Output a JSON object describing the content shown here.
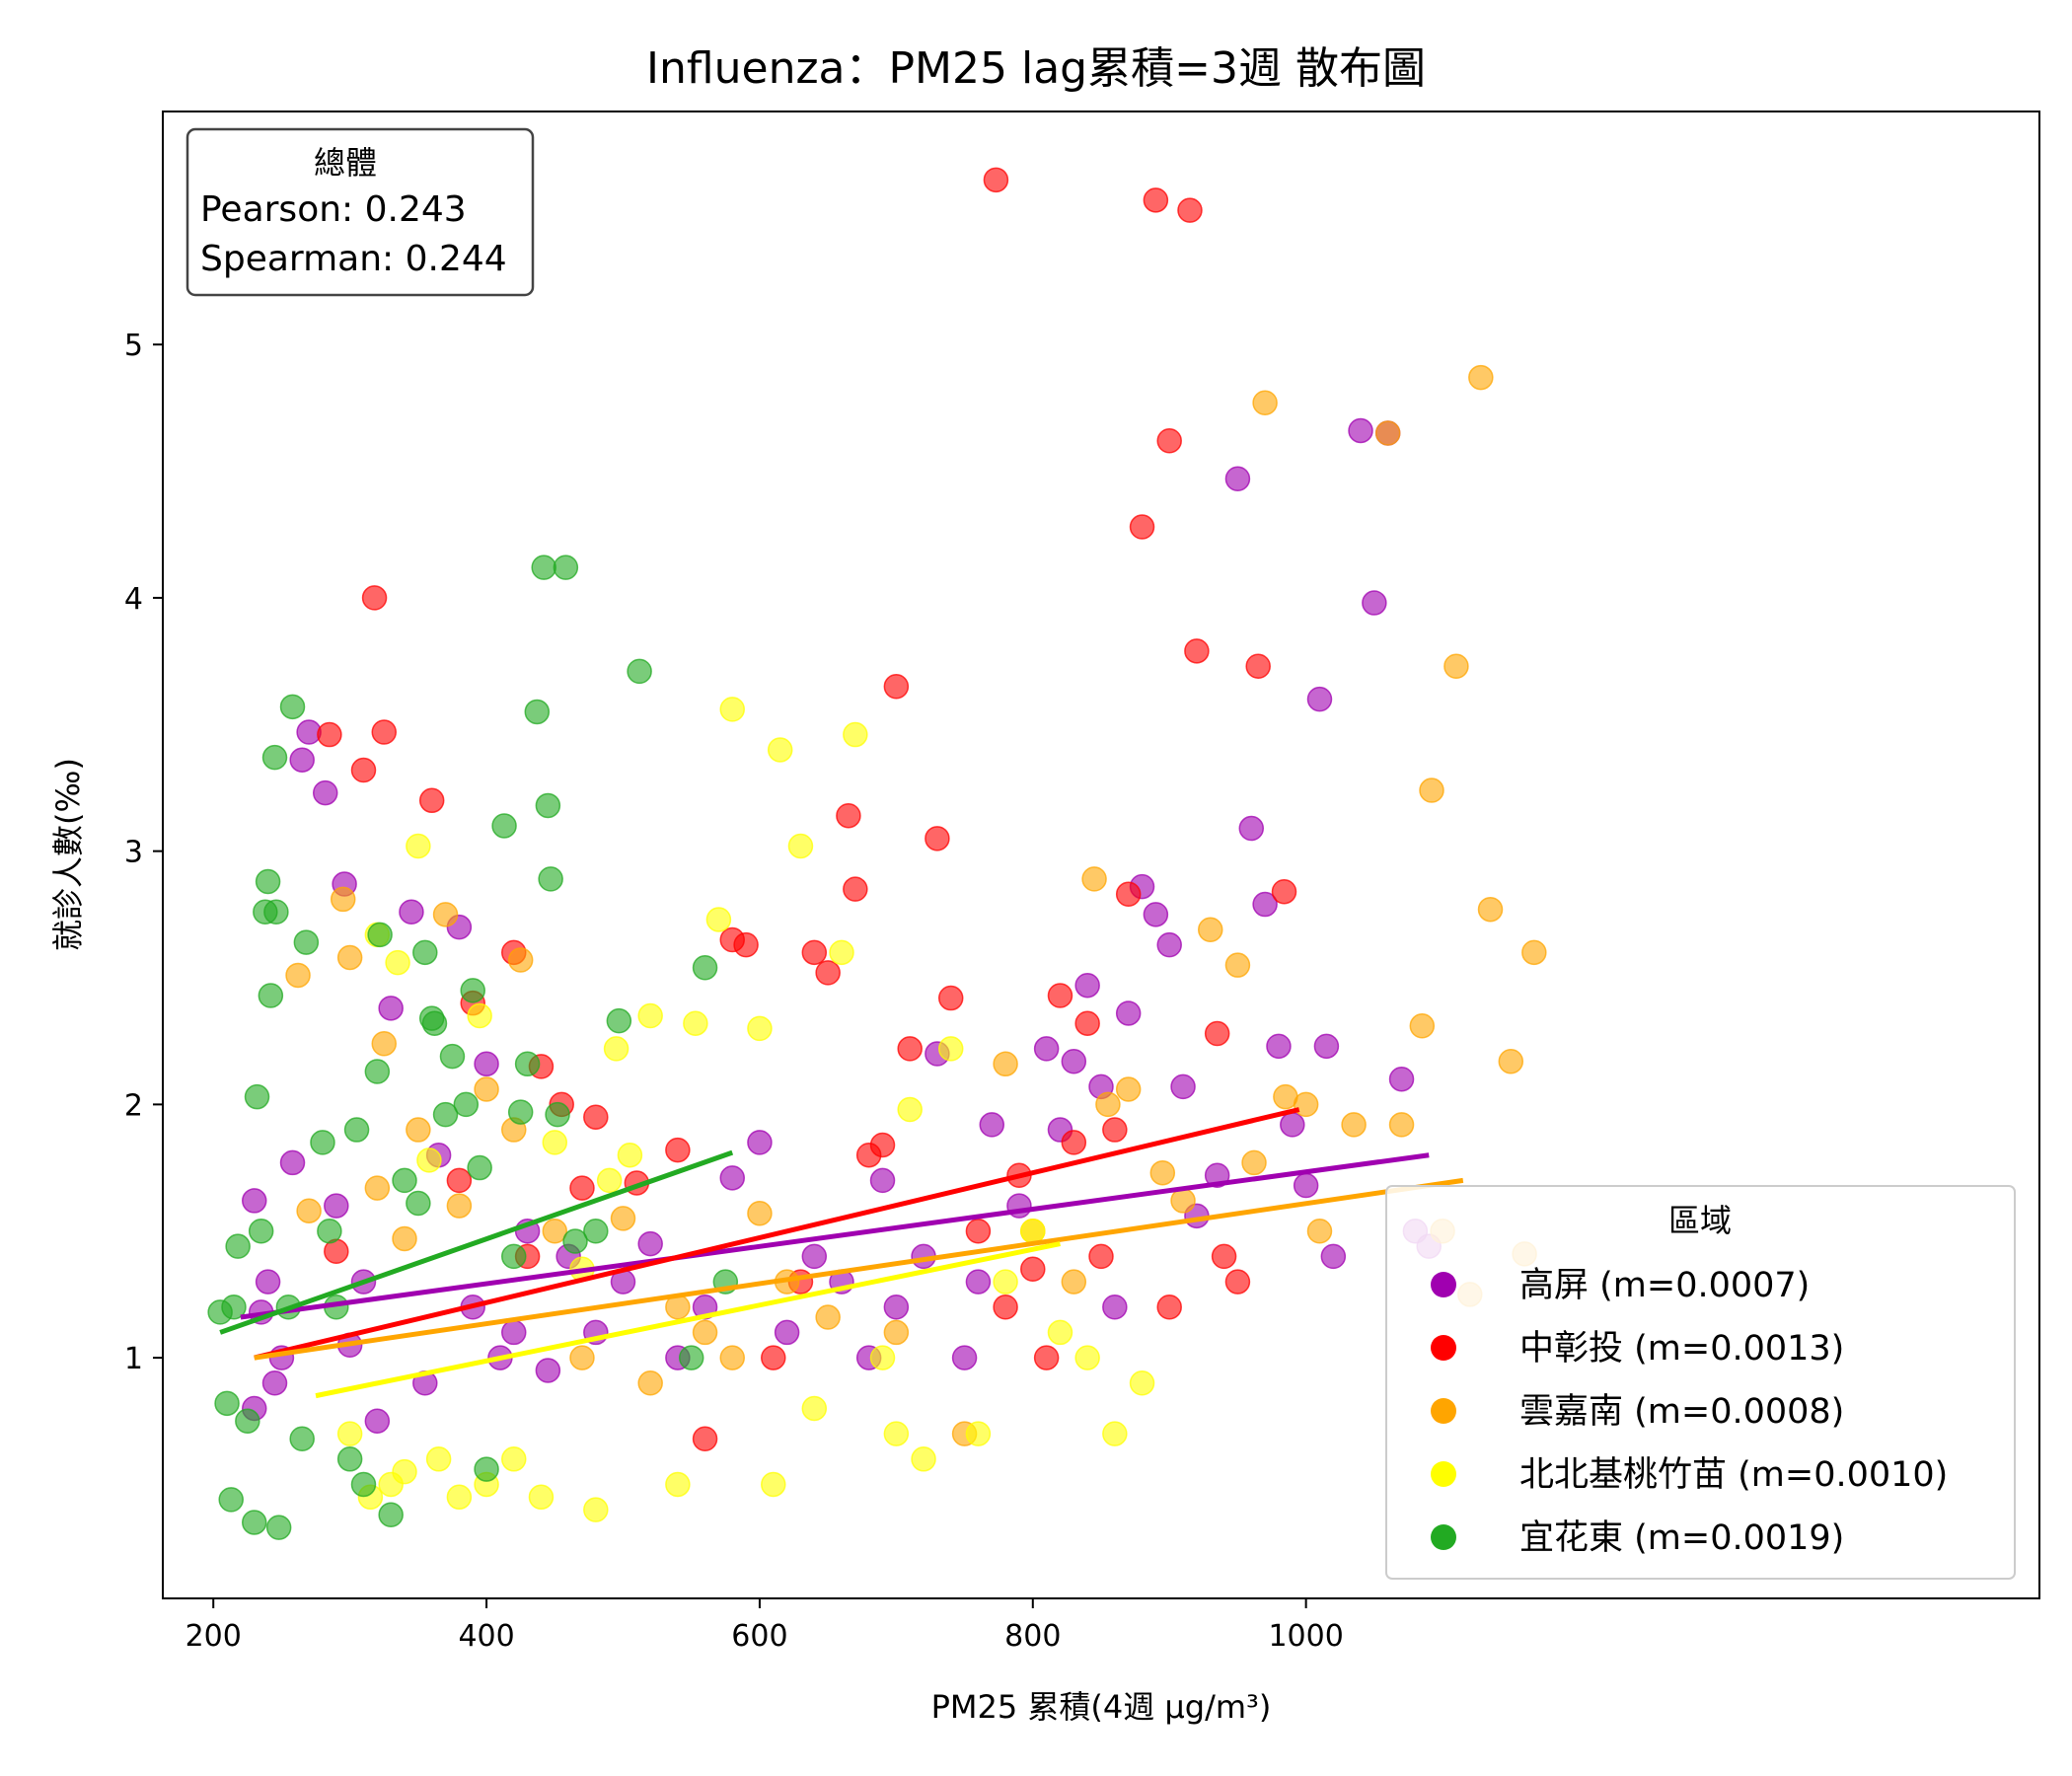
{
  "chart_data": {
    "type": "scatter",
    "title": "Influenza：PM25 lag累積=3週 散布圖",
    "xlabel": "PM25 累積(4週 μg/m³)",
    "ylabel": "就診人數(‰)",
    "xlim": [
      163,
      1537
    ],
    "ylim": [
      0.05,
      5.92
    ],
    "xticks": [
      200,
      400,
      600,
      800,
      1000
    ],
    "yticks": [
      1,
      2,
      3,
      4,
      5
    ],
    "grid": false,
    "stats_box": {
      "title": "總體",
      "pearson": "Pearson: 0.243",
      "spearman": "Spearman: 0.244"
    },
    "legend": {
      "title": "區域",
      "placement": "lower-right"
    },
    "series": [
      {
        "name": "高屏 (m=0.0007)",
        "color": "#a000b0",
        "trend": {
          "x": [
            220,
            1090
          ],
          "y": [
            1.16,
            1.8
          ]
        },
        "points": [
          [
            230,
            1.62
          ],
          [
            235,
            1.18
          ],
          [
            240,
            1.3
          ],
          [
            245,
            0.9
          ],
          [
            250,
            1.0
          ],
          [
            258,
            1.77
          ],
          [
            265,
            3.36
          ],
          [
            270,
            3.47
          ],
          [
            282,
            3.23
          ],
          [
            290,
            1.6
          ],
          [
            296,
            2.87
          ],
          [
            230,
            0.8
          ],
          [
            300,
            1.05
          ],
          [
            310,
            1.3
          ],
          [
            320,
            0.75
          ],
          [
            330,
            2.38
          ],
          [
            345,
            2.76
          ],
          [
            355,
            0.9
          ],
          [
            365,
            1.8
          ],
          [
            380,
            2.7
          ],
          [
            390,
            1.2
          ],
          [
            400,
            2.16
          ],
          [
            410,
            1.0
          ],
          [
            420,
            1.1
          ],
          [
            430,
            1.5
          ],
          [
            445,
            0.95
          ],
          [
            460,
            1.4
          ],
          [
            480,
            1.1
          ],
          [
            500,
            1.3
          ],
          [
            520,
            1.45
          ],
          [
            540,
            1.0
          ],
          [
            560,
            1.2
          ],
          [
            580,
            1.71
          ],
          [
            600,
            1.85
          ],
          [
            620,
            1.1
          ],
          [
            640,
            1.4
          ],
          [
            660,
            1.3
          ],
          [
            680,
            1.0
          ],
          [
            690,
            1.7
          ],
          [
            700,
            1.2
          ],
          [
            720,
            1.4
          ],
          [
            730,
            2.2
          ],
          [
            750,
            1.0
          ],
          [
            760,
            1.3
          ],
          [
            770,
            1.92
          ],
          [
            790,
            1.6
          ],
          [
            810,
            2.22
          ],
          [
            820,
            1.9
          ],
          [
            830,
            2.17
          ],
          [
            840,
            2.47
          ],
          [
            850,
            2.07
          ],
          [
            860,
            1.2
          ],
          [
            870,
            2.36
          ],
          [
            880,
            2.86
          ],
          [
            890,
            2.75
          ],
          [
            900,
            2.63
          ],
          [
            910,
            2.07
          ],
          [
            920,
            1.56
          ],
          [
            935,
            1.72
          ],
          [
            950,
            4.47
          ],
          [
            960,
            3.09
          ],
          [
            970,
            2.79
          ],
          [
            980,
            2.23
          ],
          [
            990,
            1.92
          ],
          [
            1000,
            1.68
          ],
          [
            1010,
            3.6
          ],
          [
            1015,
            2.23
          ],
          [
            1020,
            1.4
          ],
          [
            1040,
            4.66
          ],
          [
            1050,
            3.98
          ],
          [
            1060,
            4.65
          ],
          [
            1070,
            2.1
          ],
          [
            1080,
            1.5
          ],
          [
            1090,
            1.44
          ]
        ]
      },
      {
        "name": "中彰投 (m=0.0013)",
        "color": "#ff0000",
        "trend": {
          "x": [
            230,
            995
          ],
          "y": [
            1.0,
            1.98
          ]
        },
        "points": [
          [
            285,
            3.46
          ],
          [
            290,
            1.42
          ],
          [
            310,
            3.32
          ],
          [
            318,
            4.0
          ],
          [
            325,
            3.47
          ],
          [
            360,
            3.2
          ],
          [
            380,
            1.7
          ],
          [
            390,
            2.4
          ],
          [
            420,
            2.6
          ],
          [
            430,
            1.4
          ],
          [
            440,
            2.15
          ],
          [
            455,
            2.0
          ],
          [
            470,
            1.67
          ],
          [
            480,
            1.95
          ],
          [
            510,
            1.69
          ],
          [
            540,
            1.82
          ],
          [
            560,
            0.68
          ],
          [
            580,
            2.65
          ],
          [
            590,
            2.63
          ],
          [
            610,
            1.0
          ],
          [
            630,
            1.3
          ],
          [
            640,
            2.6
          ],
          [
            650,
            2.52
          ],
          [
            665,
            3.14
          ],
          [
            670,
            2.85
          ],
          [
            680,
            1.8
          ],
          [
            690,
            1.84
          ],
          [
            700,
            3.65
          ],
          [
            710,
            2.22
          ],
          [
            730,
            3.05
          ],
          [
            740,
            2.42
          ],
          [
            760,
            1.5
          ],
          [
            780,
            1.2
          ],
          [
            790,
            1.72
          ],
          [
            800,
            1.35
          ],
          [
            810,
            1.0
          ],
          [
            820,
            2.43
          ],
          [
            830,
            1.85
          ],
          [
            840,
            2.32
          ],
          [
            850,
            1.4
          ],
          [
            860,
            1.9
          ],
          [
            870,
            2.83
          ],
          [
            880,
            4.28
          ],
          [
            890,
            5.57
          ],
          [
            900,
            4.62
          ],
          [
            915,
            5.53
          ],
          [
            920,
            3.79
          ],
          [
            935,
            2.28
          ],
          [
            950,
            1.3
          ],
          [
            965,
            3.73
          ],
          [
            984,
            2.84
          ],
          [
            900,
            1.2
          ],
          [
            940,
            1.4
          ],
          [
            773,
            5.65
          ]
        ]
      },
      {
        "name": "雲嘉南 (m=0.0008)",
        "color": "#ffa500",
        "trend": {
          "x": [
            230,
            1115
          ],
          "y": [
            1.0,
            1.7
          ]
        },
        "points": [
          [
            262,
            2.51
          ],
          [
            270,
            1.58
          ],
          [
            295,
            2.81
          ],
          [
            300,
            2.58
          ],
          [
            320,
            1.67
          ],
          [
            325,
            2.24
          ],
          [
            340,
            1.47
          ],
          [
            350,
            1.9
          ],
          [
            370,
            2.75
          ],
          [
            380,
            1.6
          ],
          [
            400,
            2.06
          ],
          [
            420,
            1.9
          ],
          [
            425,
            2.57
          ],
          [
            450,
            1.5
          ],
          [
            470,
            1.0
          ],
          [
            500,
            1.55
          ],
          [
            520,
            0.9
          ],
          [
            540,
            1.2
          ],
          [
            560,
            1.1
          ],
          [
            580,
            1.0
          ],
          [
            600,
            1.57
          ],
          [
            620,
            1.3
          ],
          [
            650,
            1.16
          ],
          [
            700,
            1.1
          ],
          [
            750,
            0.7
          ],
          [
            780,
            2.16
          ],
          [
            800,
            1.5
          ],
          [
            830,
            1.3
          ],
          [
            845,
            2.89
          ],
          [
            855,
            2.0
          ],
          [
            870,
            2.06
          ],
          [
            895,
            1.73
          ],
          [
            910,
            1.62
          ],
          [
            930,
            2.69
          ],
          [
            950,
            2.55
          ],
          [
            962,
            1.77
          ],
          [
            970,
            4.77
          ],
          [
            985,
            2.03
          ],
          [
            1000,
            2.0
          ],
          [
            1010,
            1.5
          ],
          [
            1035,
            1.92
          ],
          [
            1060,
            4.65
          ],
          [
            1070,
            1.92
          ],
          [
            1085,
            2.31
          ],
          [
            1092,
            3.24
          ],
          [
            1110,
            3.73
          ],
          [
            1128,
            4.87
          ],
          [
            1135,
            2.77
          ],
          [
            1150,
            2.17
          ],
          [
            1167,
            2.6
          ],
          [
            1160,
            1.41
          ],
          [
            1100,
            1.5
          ],
          [
            1120,
            1.25
          ]
        ]
      },
      {
        "name": "北北基桃竹苗 (m=0.0010)",
        "color": "#ffff00",
        "trend": {
          "x": [
            275,
            820
          ],
          "y": [
            0.85,
            1.45
          ]
        },
        "points": [
          [
            300,
            0.7
          ],
          [
            315,
            0.45
          ],
          [
            320,
            2.67
          ],
          [
            330,
            0.5
          ],
          [
            335,
            2.56
          ],
          [
            340,
            0.55
          ],
          [
            350,
            3.02
          ],
          [
            358,
            1.78
          ],
          [
            365,
            0.6
          ],
          [
            380,
            0.45
          ],
          [
            395,
            2.35
          ],
          [
            400,
            0.5
          ],
          [
            420,
            0.6
          ],
          [
            440,
            0.45
          ],
          [
            450,
            1.85
          ],
          [
            470,
            1.35
          ],
          [
            480,
            0.4
          ],
          [
            490,
            1.7
          ],
          [
            495,
            2.22
          ],
          [
            505,
            1.8
          ],
          [
            520,
            2.35
          ],
          [
            540,
            0.5
          ],
          [
            553,
            2.32
          ],
          [
            570,
            2.73
          ],
          [
            580,
            3.56
          ],
          [
            600,
            2.3
          ],
          [
            610,
            0.5
          ],
          [
            615,
            3.4
          ],
          [
            630,
            3.02
          ],
          [
            640,
            0.8
          ],
          [
            660,
            2.6
          ],
          [
            670,
            3.46
          ],
          [
            690,
            1.0
          ],
          [
            700,
            0.7
          ],
          [
            710,
            1.98
          ],
          [
            720,
            0.6
          ],
          [
            740,
            2.22
          ],
          [
            760,
            0.7
          ],
          [
            780,
            1.3
          ],
          [
            800,
            1.5
          ],
          [
            820,
            1.1
          ],
          [
            840,
            1.0
          ],
          [
            860,
            0.7
          ],
          [
            880,
            0.9
          ]
        ]
      },
      {
        "name": "宜花東 (m=0.0019)",
        "color": "#22aa22",
        "trend": {
          "x": [
            205,
            580
          ],
          "y": [
            1.1,
            1.81
          ]
        },
        "points": [
          [
            205,
            1.18
          ],
          [
            210,
            0.82
          ],
          [
            213,
            0.44
          ],
          [
            215,
            1.2
          ],
          [
            218,
            1.44
          ],
          [
            225,
            0.75
          ],
          [
            230,
            0.35
          ],
          [
            232,
            2.03
          ],
          [
            235,
            1.5
          ],
          [
            238,
            2.76
          ],
          [
            240,
            2.88
          ],
          [
            242,
            2.43
          ],
          [
            245,
            3.37
          ],
          [
            246,
            2.76
          ],
          [
            248,
            0.33
          ],
          [
            255,
            1.2
          ],
          [
            258,
            3.57
          ],
          [
            265,
            0.68
          ],
          [
            268,
            2.64
          ],
          [
            280,
            1.85
          ],
          [
            285,
            1.5
          ],
          [
            290,
            1.2
          ],
          [
            300,
            0.6
          ],
          [
            305,
            1.9
          ],
          [
            310,
            0.5
          ],
          [
            320,
            2.13
          ],
          [
            322,
            2.67
          ],
          [
            330,
            0.38
          ],
          [
            340,
            1.7
          ],
          [
            350,
            1.61
          ],
          [
            355,
            2.6
          ],
          [
            360,
            2.34
          ],
          [
            362,
            2.32
          ],
          [
            370,
            1.96
          ],
          [
            375,
            2.19
          ],
          [
            385,
            2.0
          ],
          [
            390,
            2.45
          ],
          [
            395,
            1.75
          ],
          [
            400,
            0.56
          ],
          [
            413,
            3.1
          ],
          [
            420,
            1.4
          ],
          [
            425,
            1.97
          ],
          [
            430,
            2.16
          ],
          [
            437,
            3.55
          ],
          [
            442,
            4.12
          ],
          [
            445,
            3.18
          ],
          [
            447,
            2.89
          ],
          [
            452,
            1.96
          ],
          [
            458,
            4.12
          ],
          [
            465,
            1.46
          ],
          [
            480,
            1.5
          ],
          [
            497,
            2.33
          ],
          [
            512,
            3.71
          ],
          [
            550,
            1.0
          ],
          [
            560,
            2.54
          ],
          [
            575,
            1.3
          ]
        ]
      }
    ]
  }
}
